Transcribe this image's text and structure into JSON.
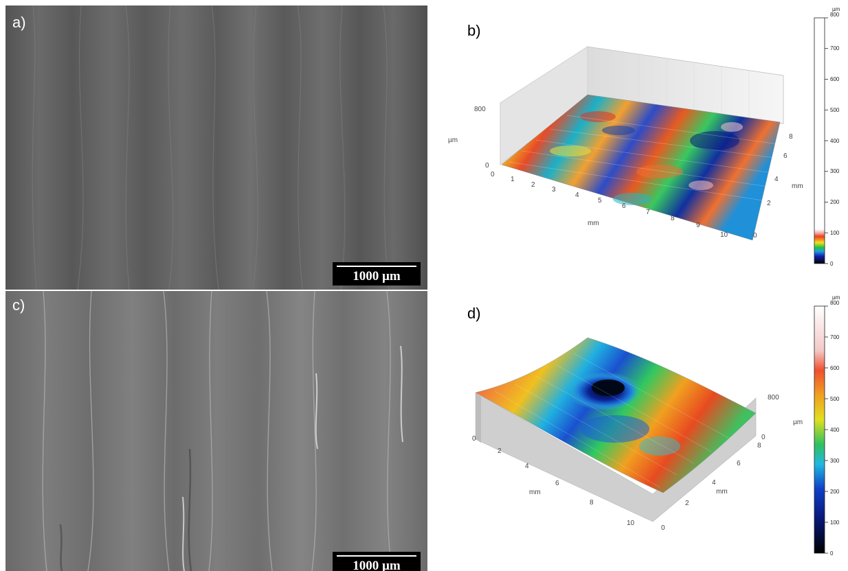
{
  "figure": {
    "panels": [
      {
        "id": "a",
        "label": "a)",
        "type": "SEM micrograph",
        "scale_bar": "1000 µm"
      },
      {
        "id": "b",
        "label": "b)",
        "type": "3D surface topography"
      },
      {
        "id": "c",
        "label": "c)",
        "type": "SEM micrograph",
        "scale_bar": "1000 µm"
      },
      {
        "id": "d",
        "label": "d)",
        "type": "3D surface topography"
      }
    ]
  },
  "panel_b": {
    "z_axis": {
      "label": "µm",
      "ticks": [
        "800",
        "0"
      ]
    },
    "x_axis": {
      "label": "mm",
      "ticks": [
        "0",
        "1",
        "2",
        "3",
        "4",
        "5",
        "6",
        "7",
        "8",
        "9",
        "10"
      ]
    },
    "y_axis": {
      "label": "mm",
      "ticks": [
        "8",
        "6",
        "4",
        "2",
        "0"
      ]
    },
    "colorbar": {
      "unit": "µm",
      "ticks": [
        "800",
        "700",
        "600",
        "500",
        "400",
        "300",
        "200",
        "100",
        "0"
      ]
    }
  },
  "panel_d": {
    "z_axis": {
      "label": "µm",
      "ticks": [
        "800",
        "0"
      ]
    },
    "x_axis": {
      "label": "mm",
      "ticks": [
        "0",
        "2",
        "4",
        "6",
        "8",
        "10"
      ]
    },
    "y_axis": {
      "label": "mm",
      "ticks": [
        "8",
        "6",
        "4",
        "2",
        "0"
      ]
    },
    "colorbar": {
      "unit": "µm",
      "ticks": [
        "800",
        "700",
        "600",
        "500",
        "400",
        "300",
        "200",
        "100",
        "0"
      ]
    }
  }
}
